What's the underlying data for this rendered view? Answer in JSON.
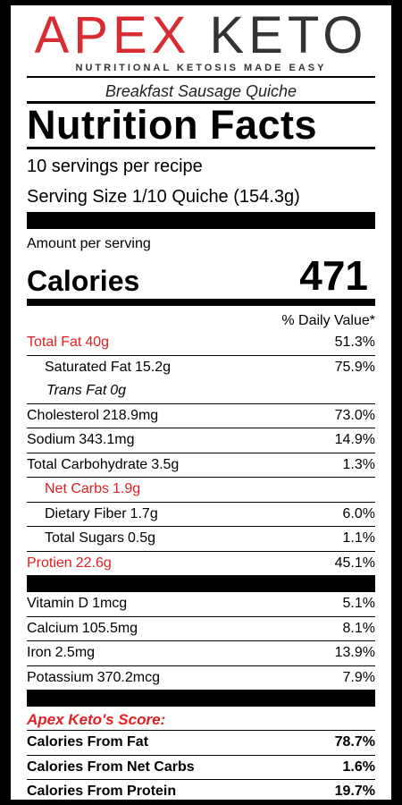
{
  "brand": {
    "part1": "APEX",
    "part2": "KETO",
    "tagline": "NUTRITIONAL KETOSIS MADE EASY",
    "red": "#d92b32"
  },
  "recipe_name": "Breakfast Sausage Quiche",
  "title": "Nutrition Facts",
  "servings_per_recipe": "10 servings per recipe",
  "serving_size": "Serving Size 1/10 Quiche (154.3g)",
  "amount_per_serving": "Amount per serving",
  "calories_label": "Calories",
  "calories_value": "471",
  "daily_value_header": "% Daily Value*",
  "nutrients": [
    {
      "name": "Total Fat",
      "amount": "40g",
      "dv": "51.3%"
    },
    {
      "name": "Saturated Fat",
      "amount": "15.2g",
      "dv": "75.9%"
    },
    {
      "name": "Trans Fat",
      "amount": "0g",
      "dv": ""
    },
    {
      "name": "Cholesterol",
      "amount": "218.9mg",
      "dv": "73.0%"
    },
    {
      "name": "Sodium",
      "amount": "343.1mg",
      "dv": "14.9%"
    },
    {
      "name": "Total Carbohydrate",
      "amount": "3.5g",
      "dv": "1.3%"
    },
    {
      "name": "Net Carbs",
      "amount": "1.9g",
      "dv": ""
    },
    {
      "name": "Dietary Fiber",
      "amount": "1.7g",
      "dv": "6.0%"
    },
    {
      "name": "Total Sugars",
      "amount": "0.5g",
      "dv": "1.1%"
    },
    {
      "name": "Protien",
      "amount": "22.6g",
      "dv": "45.1%"
    }
  ],
  "vitamins": [
    {
      "name": "Vitamin D",
      "amount": "1mcg",
      "dv": "5.1%"
    },
    {
      "name": "Calcium",
      "amount": "105.5mg",
      "dv": "8.1%"
    },
    {
      "name": "Iron",
      "amount": "2.5mg",
      "dv": "13.9%"
    },
    {
      "name": "Potassium",
      "amount": "370.2mcg",
      "dv": "7.9%"
    }
  ],
  "score": {
    "title": "Apex Keto's Score:",
    "rows": [
      {
        "label": "Calories From Fat",
        "value": "78.7%"
      },
      {
        "label": "Calories From Net Carbs",
        "value": "1.6%"
      },
      {
        "label": "Calories From Protein",
        "value": "19.7%"
      }
    ]
  }
}
